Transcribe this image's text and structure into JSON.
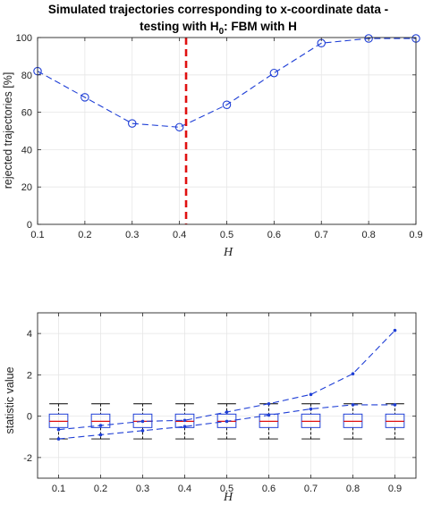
{
  "chart_data": [
    {
      "type": "line",
      "title_line1": "Simulated trajectories corresponding to x-coordinate data -",
      "title_line2_pre": "testing with H",
      "title_line2_sub": "0",
      "title_line2_post": ": FBM with H",
      "xlabel": "H",
      "ylabel": "rejected trajectories [%]",
      "xlim": [
        0.1,
        0.9
      ],
      "ylim": [
        0,
        100
      ],
      "xticks": [
        0.1,
        0.2,
        0.3,
        0.4,
        0.5,
        0.6,
        0.7,
        0.8,
        0.9
      ],
      "xtick_labels": [
        "0.1",
        "0.2",
        "0.3",
        "0.4",
        "0.5",
        "0.6",
        "0.7",
        "0.8",
        "0.9"
      ],
      "yticks": [
        0,
        20,
        40,
        60,
        80,
        100
      ],
      "ytick_labels": [
        "0",
        "20",
        "40",
        "60",
        "80",
        "100"
      ],
      "x": [
        0.1,
        0.2,
        0.3,
        0.4,
        0.5,
        0.6,
        0.7,
        0.8,
        0.9
      ],
      "y": [
        82,
        68,
        54,
        52,
        64,
        81,
        97,
        99.5,
        99.5
      ],
      "vline_x": 0.414,
      "line_color": "#1f3fd6",
      "vline_color": "#e01010"
    },
    {
      "type": "box",
      "xlabel": "H",
      "ylabel": "statistic value",
      "xlim": [
        0.05,
        0.95
      ],
      "ylim": [
        -3,
        5
      ],
      "xticks": [
        0.1,
        0.2,
        0.3,
        0.4,
        0.5,
        0.6,
        0.7,
        0.8,
        0.9
      ],
      "xtick_labels": [
        "0.1",
        "0.2",
        "0.3",
        "0.4",
        "0.5",
        "0.6",
        "0.7",
        "0.8",
        "0.9"
      ],
      "yticks": [
        -2,
        0,
        2,
        4
      ],
      "ytick_labels": [
        "-2",
        "0",
        "2",
        "4"
      ],
      "boxes": [
        {
          "x": 0.1,
          "whisker_low": -1.1,
          "q1": -0.55,
          "median": -0.25,
          "q3": 0.1,
          "whisker_high": 0.6
        },
        {
          "x": 0.2,
          "whisker_low": -1.1,
          "q1": -0.55,
          "median": -0.25,
          "q3": 0.1,
          "whisker_high": 0.6
        },
        {
          "x": 0.3,
          "whisker_low": -1.1,
          "q1": -0.55,
          "median": -0.25,
          "q3": 0.1,
          "whisker_high": 0.6
        },
        {
          "x": 0.4,
          "whisker_low": -1.1,
          "q1": -0.55,
          "median": -0.25,
          "q3": 0.1,
          "whisker_high": 0.6
        },
        {
          "x": 0.5,
          "whisker_low": -1.1,
          "q1": -0.55,
          "median": -0.25,
          "q3": 0.1,
          "whisker_high": 0.6
        },
        {
          "x": 0.6,
          "whisker_low": -1.1,
          "q1": -0.55,
          "median": -0.25,
          "q3": 0.1,
          "whisker_high": 0.6
        },
        {
          "x": 0.7,
          "whisker_low": -1.1,
          "q1": -0.55,
          "median": -0.25,
          "q3": 0.1,
          "whisker_high": 0.6
        },
        {
          "x": 0.8,
          "whisker_low": -1.1,
          "q1": -0.55,
          "median": -0.25,
          "q3": 0.1,
          "whisker_high": 0.6
        },
        {
          "x": 0.9,
          "whisker_low": -1.1,
          "q1": -0.55,
          "median": -0.25,
          "q3": 0.1,
          "whisker_high": 0.6
        }
      ],
      "series": [
        {
          "x": [
            0.1,
            0.2,
            0.3,
            0.4,
            0.5,
            0.6,
            0.7,
            0.8,
            0.9
          ],
          "y": [
            -0.65,
            -0.45,
            -0.25,
            -0.2,
            0.2,
            0.6,
            1.05,
            2.05,
            4.15
          ]
        },
        {
          "x": [
            0.1,
            0.2,
            0.3,
            0.4,
            0.5,
            0.6,
            0.7,
            0.8,
            0.9
          ],
          "y": [
            -1.1,
            -0.9,
            -0.7,
            -0.5,
            -0.25,
            0.05,
            0.35,
            0.55,
            0.55
          ]
        }
      ],
      "box_color": "#1f3fd6",
      "median_color": "#e01010",
      "whisker_color": "#000000",
      "line_color": "#1f3fd6"
    }
  ]
}
